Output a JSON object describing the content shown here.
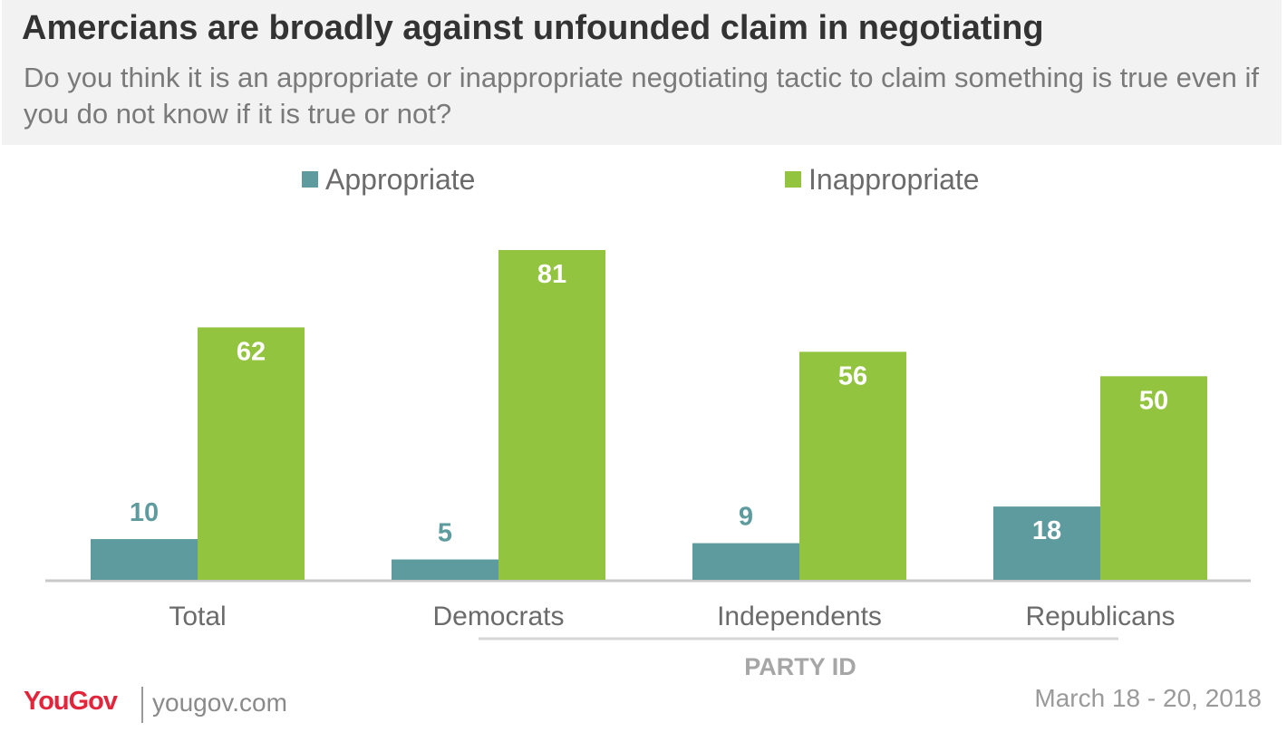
{
  "header": {
    "title": "Amercians are broadly against unfounded claim in negotiating",
    "subtitle": "Do you think it is an appropriate or inappropriate negotiating tactic to claim something is true even if you do not know if it is true or not?"
  },
  "chart_data": {
    "type": "bar",
    "categories": [
      "Total",
      "Democrats",
      "Independents",
      "Republicans"
    ],
    "series": [
      {
        "name": "Appropriate",
        "values": [
          10,
          5,
          9,
          18
        ],
        "color": "#5e9b9e"
      },
      {
        "name": "Inappropriate",
        "values": [
          62,
          81,
          56,
          50
        ],
        "color": "#93c440"
      }
    ],
    "group_label": "PARTY ID",
    "group_categories": [
      "Democrats",
      "Independents",
      "Republicans"
    ],
    "ylim": [
      0,
      81
    ],
    "grid": false,
    "legend_position": "top"
  },
  "footer": {
    "logo": "YouGov",
    "url": "yougov.com",
    "date": "March 18 - 20, 2018"
  }
}
